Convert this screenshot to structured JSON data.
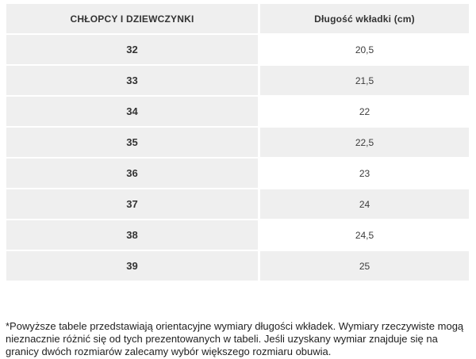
{
  "table": {
    "headers": {
      "col1": "CHŁOPCY I DZIEWCZYNKI",
      "col2": "Długość wkładki (cm)"
    },
    "rows": [
      {
        "size": "32",
        "length": "20,5"
      },
      {
        "size": "33",
        "length": "21,5"
      },
      {
        "size": "34",
        "length": "22"
      },
      {
        "size": "35",
        "length": "22,5"
      },
      {
        "size": "36",
        "length": "23"
      },
      {
        "size": "37",
        "length": "24"
      },
      {
        "size": "38",
        "length": "24,5"
      },
      {
        "size": "39",
        "length": "25"
      }
    ]
  },
  "footnote": "*Powyższe tabele przedstawiają orientacyjne wymiary długości wkładek. Wymiary rzeczywiste mogą nieznacznie różnić się od tych prezentowanych w tabeli. Jeśli uzyskany wymiar znajduje się na granicy dwóch rozmiarów zalecamy wybór większego rozmiaru obuwia.",
  "colors": {
    "cell_gray": "#efefef",
    "cell_white": "#ffffff",
    "text_dark": "#333333"
  }
}
